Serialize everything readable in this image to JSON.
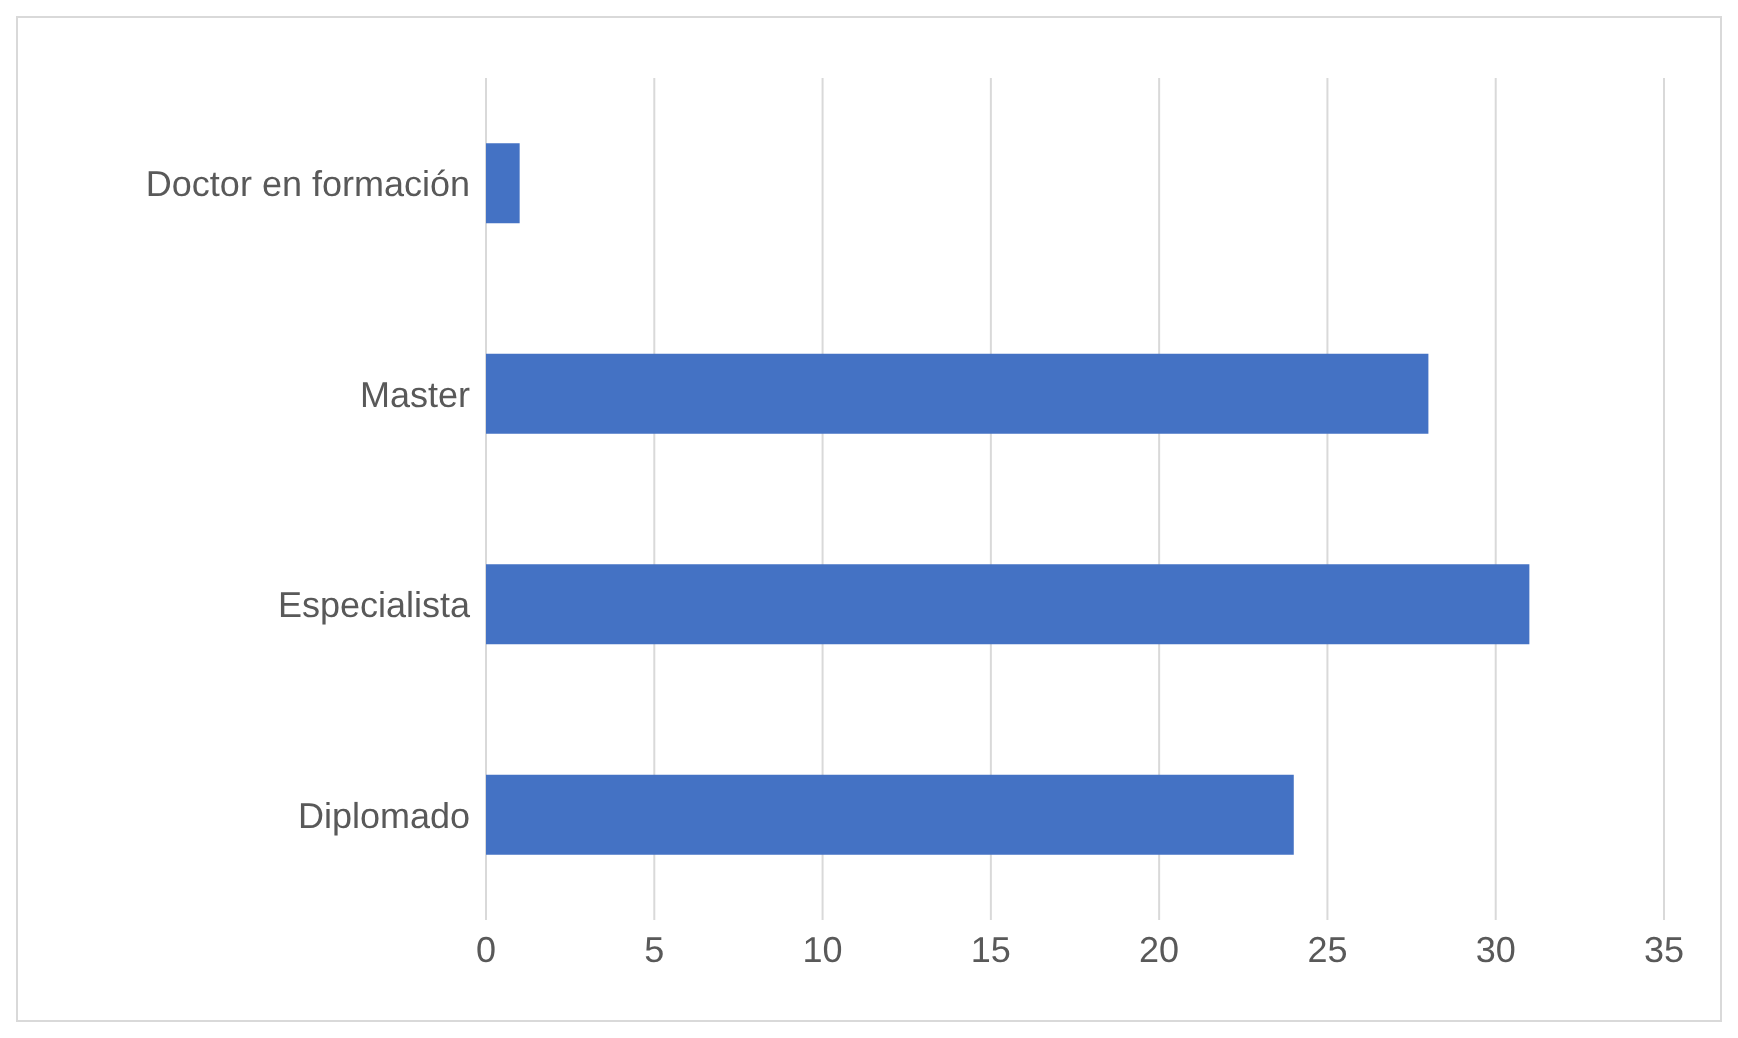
{
  "chart_data": {
    "type": "bar",
    "orientation": "horizontal",
    "categories": [
      "Doctor en formación",
      "Master",
      "Especialista",
      "Diplomado"
    ],
    "values": [
      1,
      28,
      31,
      24
    ],
    "color": "#4472c4",
    "xlim": [
      0,
      35
    ],
    "xticks": [
      0,
      5,
      10,
      15,
      20,
      25,
      30,
      35
    ],
    "grid": "x",
    "legend": false
  }
}
